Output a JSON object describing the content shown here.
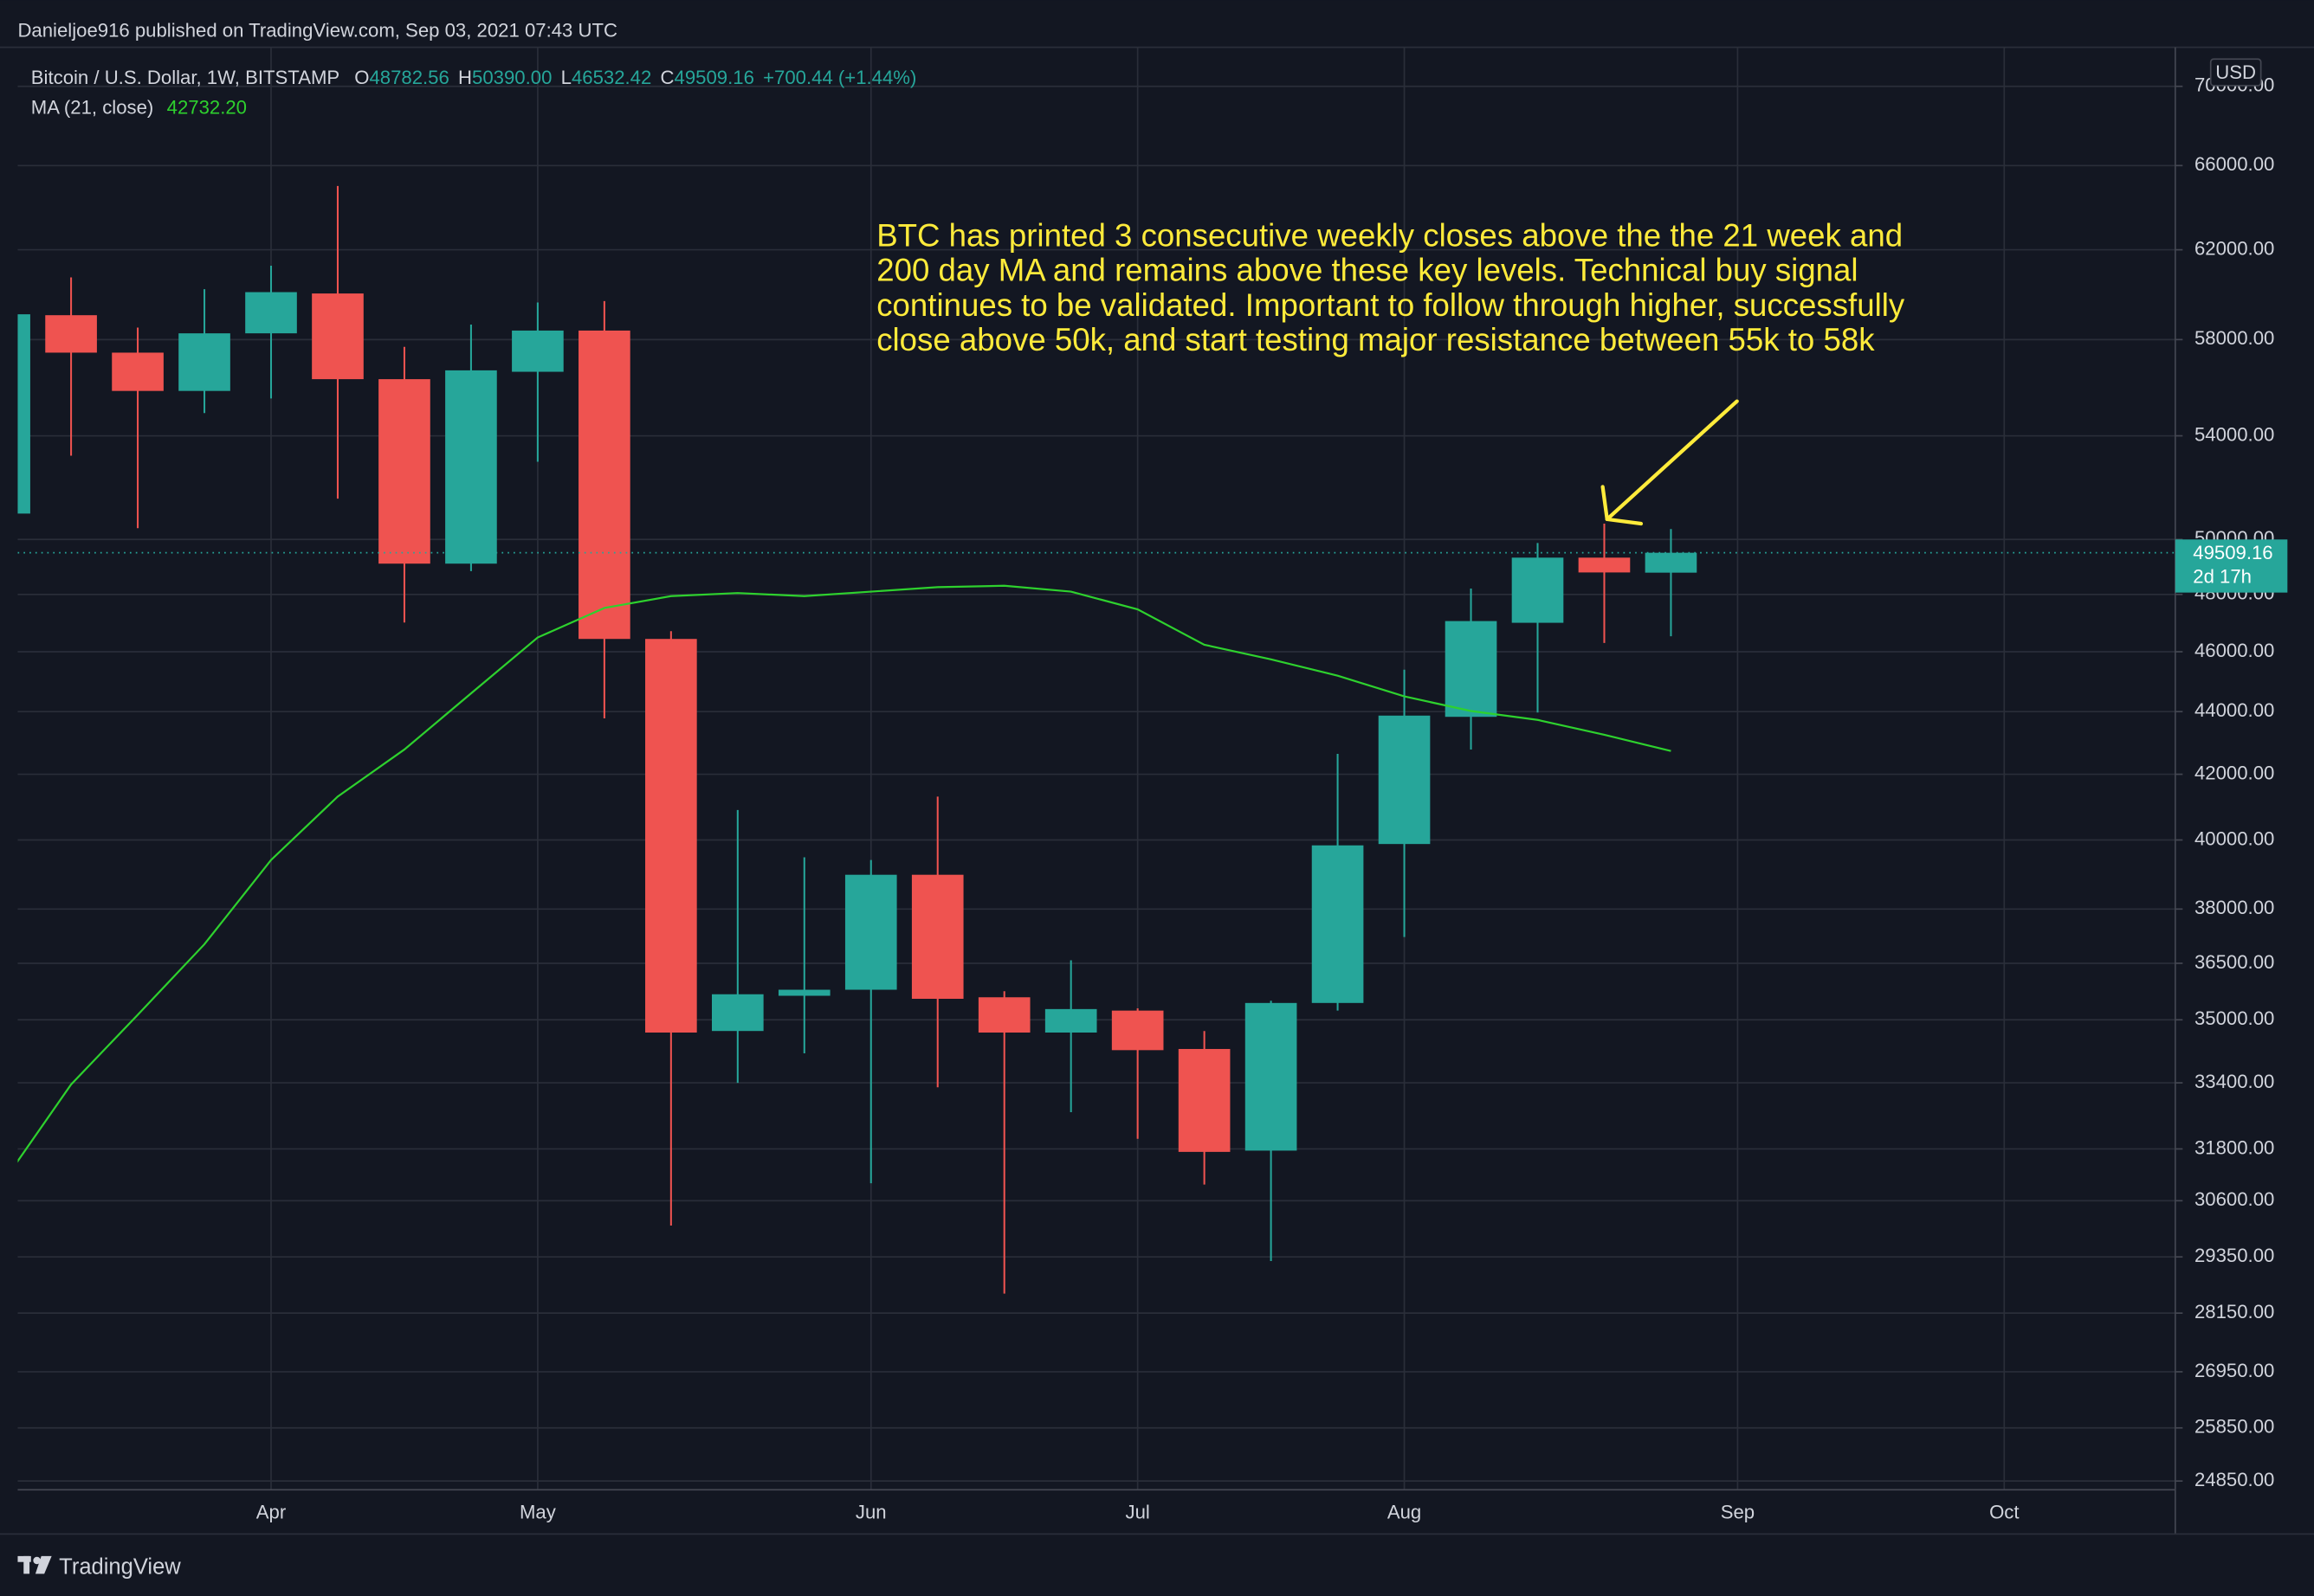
{
  "header": {
    "attribution": "Danieljoe916 published on TradingView.com, Sep 03, 2021 07:43 UTC"
  },
  "chart_data": {
    "type": "candlestick",
    "legend": [
      {
        "key": "O",
        "value": "48782.56"
      },
      {
        "key": "H",
        "value": "50390.00"
      },
      {
        "key": "L",
        "value": "46532.42"
      },
      {
        "key": "C",
        "value": "49509.16"
      }
    ],
    "change": "+700.44 (+1.44%)",
    "currency": "USD",
    "last_price_label": "49509.16",
    "countdown": "2d 17h",
    "annotation": [
      "BTC has printed 3 consecutive weekly closes above the the 21 week and",
      "200 day MA and remains above these key levels. Technical buy signal",
      "continues to be validated. Important to follow through higher, successfully",
      "close above 50k, and start testing major resistance between 55k to 58k"
    ],
    "categories": [
      null,
      null,
      null,
      null,
      "Apr",
      null,
      null,
      null,
      "May",
      null,
      null,
      null,
      null,
      "Jun",
      null,
      null,
      null,
      "Jul",
      null,
      null,
      null,
      "Aug",
      null,
      null,
      null,
      null,
      "Sep",
      null,
      null,
      null,
      "Oct"
    ],
    "series": [
      {
        "name": "Bitcoin / U.S. Dollar, 1W, BITSTAMP",
        "up_color": "#26a69a",
        "down_color": "#ef5350",
        "open": [
          50970,
          59060,
          57440,
          55830,
          58270,
          60020,
          56320,
          49110,
          56630,
          58390,
          46440,
          34710,
          35630,
          35790,
          38980,
          35590,
          34670,
          35240,
          34250,
          31760,
          35440,
          39880,
          43830,
          47000,
          49330,
          48782.56,
          null,
          null,
          null,
          null,
          null
        ],
        "high": [
          61000,
          60740,
          58520,
          60210,
          61270,
          65010,
          57690,
          58650,
          59620,
          59680,
          46710,
          40900,
          39490,
          39410,
          41310,
          35750,
          36580,
          35300,
          34710,
          35500,
          42640,
          45390,
          48210,
          49870,
          50590,
          50390.0,
          null,
          null,
          null,
          null,
          null
        ],
        "low": [
          49300,
          53210,
          50420,
          54920,
          55520,
          51540,
          47010,
          48840,
          52970,
          43780,
          30040,
          33400,
          34140,
          31000,
          33290,
          28560,
          32680,
          32040,
          30970,
          29260,
          35240,
          37220,
          42780,
          43970,
          46300,
          46532.42,
          null,
          null,
          null,
          null,
          null
        ],
        "close": [
          59100,
          57440,
          55830,
          58270,
          60080,
          56320,
          49110,
          56690,
          58390,
          46440,
          34670,
          35670,
          35790,
          38980,
          35550,
          34670,
          35280,
          34220,
          31730,
          35440,
          39840,
          43870,
          47060,
          49330,
          48790,
          49509.16,
          null,
          null,
          null,
          null,
          null
        ]
      },
      {
        "name": "MA (21, close)",
        "type": "line",
        "color": "#2ed12e",
        "value_label": "42732.20",
        "values": [
          31070,
          33360,
          35130,
          37020,
          39410,
          41310,
          42780,
          44600,
          46490,
          47520,
          47940,
          48050,
          47940,
          48100,
          48260,
          48310,
          48100,
          47470,
          46240,
          45740,
          45190,
          44500,
          44020,
          43730,
          43250,
          42732.2,
          null,
          null,
          null,
          null,
          null
        ]
      }
    ],
    "log_scale": true,
    "grid": true,
    "ylim": [
      24690,
      72060
    ],
    "yticks": [
      {
        "value": 70000,
        "label": "70000.00"
      },
      {
        "value": 66000,
        "label": "66000.00"
      },
      {
        "value": 62000,
        "label": "62000.00"
      },
      {
        "value": 58000,
        "label": "58000.00"
      },
      {
        "value": 54000,
        "label": "54000.00"
      },
      {
        "value": 50000,
        "label": "50000.00"
      },
      {
        "value": 48000,
        "label": "48000.00"
      },
      {
        "value": 46000,
        "label": "46000.00"
      },
      {
        "value": 44000,
        "label": "44000.00"
      },
      {
        "value": 42000,
        "label": "42000.00"
      },
      {
        "value": 40000,
        "label": "40000.00"
      },
      {
        "value": 38000,
        "label": "38000.00"
      },
      {
        "value": 36500,
        "label": "36500.00"
      },
      {
        "value": 35000,
        "label": "35000.00"
      },
      {
        "value": 33400,
        "label": "33400.00"
      },
      {
        "value": 31800,
        "label": "31800.00"
      },
      {
        "value": 30600,
        "label": "30600.00"
      },
      {
        "value": 29350,
        "label": "29350.00"
      },
      {
        "value": 28150,
        "label": "28150.00"
      },
      {
        "value": 26950,
        "label": "26950.00"
      },
      {
        "value": 25850,
        "label": "25850.00"
      },
      {
        "value": 24850,
        "label": "24850.00"
      }
    ]
  },
  "footer": {
    "brand": "TradingView"
  }
}
